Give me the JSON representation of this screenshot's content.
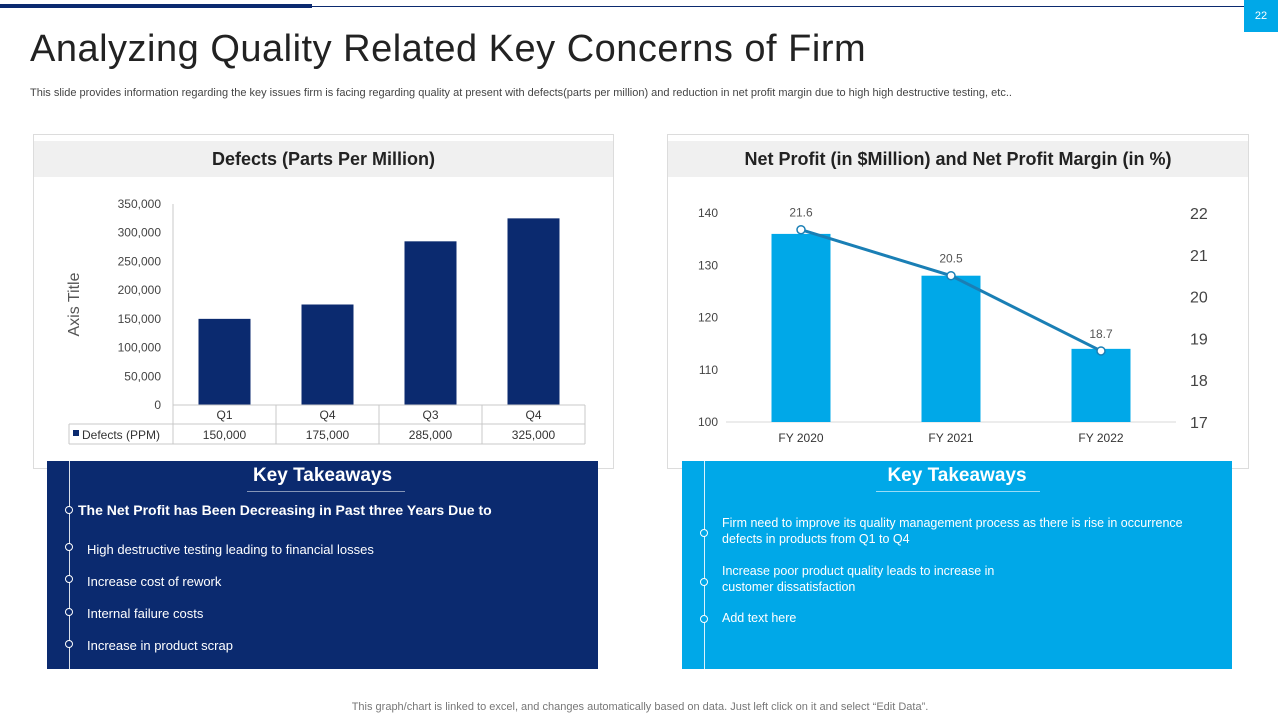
{
  "slide": {
    "page_number": "22",
    "title": "Analyzing Quality Related Key Concerns of Firm",
    "subtitle": "This slide provides information regarding the key issues firm is facing regarding quality at present with defects(parts per million) and reduction in net profit margin due to high high destructive testing, etc..",
    "footer": "This graph/chart is linked to excel, and changes automatically based on data. Just left click on it and select “Edit Data”."
  },
  "colors": {
    "navy": "#0b2a6f",
    "blue": "#00a8e8",
    "line": "#1a7fb5"
  },
  "panels": {
    "left_heading": "Defects (Parts Per Million)",
    "right_heading": "Net Profit (in $Million) and Net Profit Margin (in %)"
  },
  "chart_data": [
    {
      "type": "bar",
      "title": "Defects (Parts Per Million)",
      "ylabel": "Axis Title",
      "categories": [
        "Q1",
        "Q4",
        "Q3",
        "Q4"
      ],
      "series": [
        {
          "name": "Defects (PPM)",
          "values": [
            150000,
            175000,
            285000,
            325000
          ]
        }
      ],
      "value_labels": [
        "150,000",
        "175,000",
        "285,000",
        "325,000"
      ],
      "ylim": [
        0,
        350000
      ],
      "yticks": [
        "0",
        "50,000",
        "100,000",
        "150,000",
        "200,000",
        "250,000",
        "300,000",
        "350,000"
      ],
      "data_table": true
    },
    {
      "type": "bar+line",
      "title": "Net Profit (in $Million) and Net Profit Margin (in %)",
      "categories": [
        "FY 2020",
        "FY 2021",
        "FY 2022"
      ],
      "bars": {
        "name": "Net Profit",
        "values": [
          136,
          128,
          114
        ],
        "ylim": [
          100,
          140
        ],
        "yticks": [
          "100",
          "110",
          "120",
          "130",
          "140"
        ]
      },
      "line": {
        "name": "Net Profit Margin",
        "values": [
          21.6,
          20.5,
          18.7
        ],
        "labels": [
          "21.6",
          "20.5",
          "18.7"
        ],
        "ylim": [
          17,
          22
        ],
        "yticks": [
          "17",
          "18",
          "19",
          "20",
          "21",
          "22"
        ]
      }
    }
  ],
  "takeaways_left": {
    "title": "Key Takeaways",
    "heading": "The Net Profit has Been Decreasing in Past three Years Due to",
    "items": [
      "High destructive testing leading to financial losses",
      "Increase cost of rework",
      "Internal failure costs",
      "Increase in product scrap"
    ]
  },
  "takeaways_right": {
    "title": "Key Takeaways",
    "items": [
      "Firm need to improve  its quality management  process as there is rise in occurrence defects in products from Q1 to Q4",
      "Increase poor product quality leads to increase in customer dissatisfaction",
      "Add text here"
    ]
  }
}
